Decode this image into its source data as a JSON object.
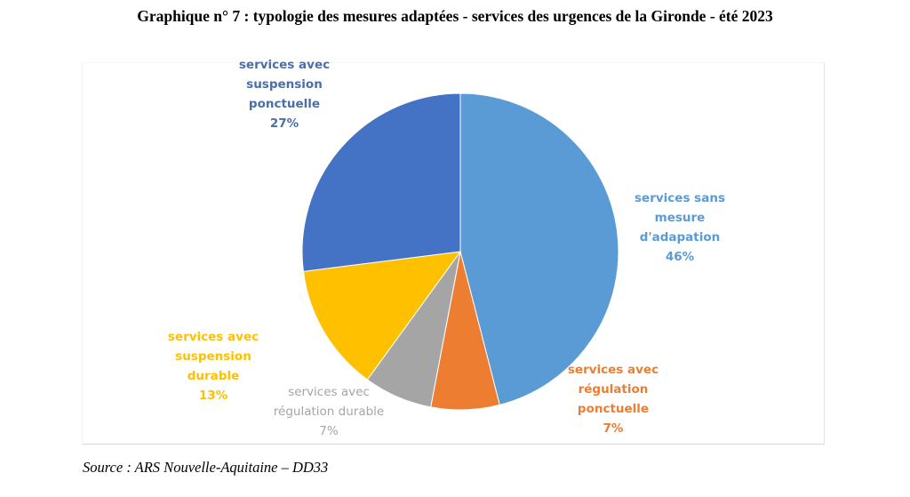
{
  "title": "Graphique n° 7 :  typologie des mesures adaptées - services des urgences de la Gironde - été 2023",
  "source": "Source : ARS Nouvelle-Aquitaine – DD33",
  "chart_data": {
    "type": "pie",
    "title": "typologie des mesures adaptées - services des urgences de la Gironde - été 2023",
    "start": "12 o'clock, clockwise",
    "slices": [
      {
        "name": "services sans mesure d'adapation",
        "value": 46,
        "label": "services sans\nmesure\nd'adapation\n46%",
        "color": "#5b9bd5",
        "label_color": "#5b9bd5"
      },
      {
        "name": "services avec régulation ponctuelle",
        "value": 7,
        "label": "services avec\nrégulation\nponctuelle\n7%",
        "color": "#ed7d31",
        "label_color": "#ed7d31"
      },
      {
        "name": "services avec régulation durable",
        "value": 7,
        "label": "services avec\nrégulation durable\n7%",
        "color": "#a5a5a5",
        "label_color": "#a5a5a5"
      },
      {
        "name": "services avec suspension durable",
        "value": 13,
        "label": "services avec\nsuspension\ndurable\n13%",
        "color": "#ffc000",
        "label_color": "#ffc000"
      },
      {
        "name": "services avec suspension ponctuelle",
        "value": 27,
        "label": "services avec\nsuspension\nponctuelle\n27%",
        "color": "#4472c4",
        "label_color": "#4a6fa8"
      }
    ],
    "unit": "%",
    "legend": "none (data labels on chart)"
  }
}
